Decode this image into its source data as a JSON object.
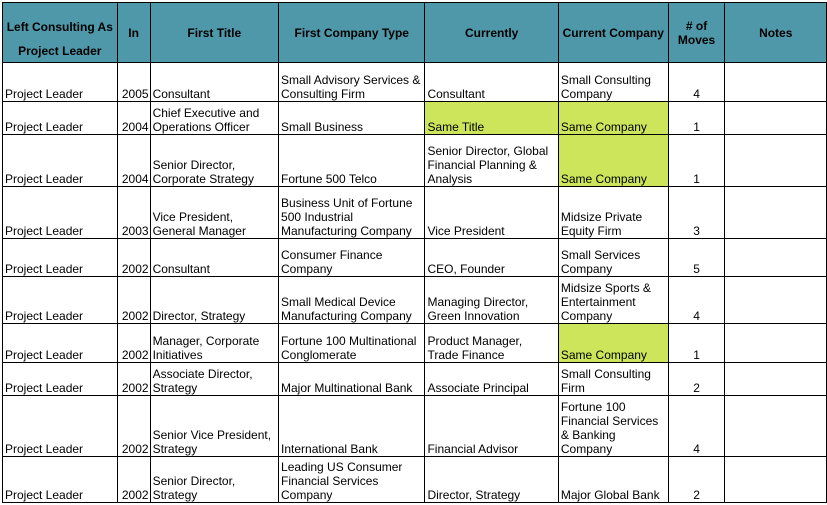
{
  "headers": {
    "left_consulting_as_line1": "Left Consulting As",
    "left_consulting_as_line2": "Project Leader",
    "in": "In",
    "first_title": "First Title",
    "first_company_type": "First Company Type",
    "currently": "Currently",
    "current_company": "Current Company",
    "moves": "# of Moves",
    "notes": "Notes"
  },
  "colors": {
    "header_bg": "#4f98a9",
    "highlight": "#cce55a"
  },
  "rows": [
    {
      "role": "Project Leader",
      "year": "2005",
      "first_title": "Consultant",
      "first_company_type": "Small Advisory Services & Consulting Firm",
      "currently": "Consultant",
      "current_company": "Small Consulting Company",
      "moves": "4",
      "notes": "",
      "hl_currently": false,
      "hl_company": false
    },
    {
      "role": "Project Leader",
      "year": "2004",
      "first_title": "Chief Executive and Operations Officer",
      "first_company_type": "Small Business",
      "currently": "Same Title",
      "current_company": "Same Company",
      "moves": "1",
      "notes": "",
      "hl_currently": true,
      "hl_company": true
    },
    {
      "role": "Project Leader",
      "year": "2004",
      "first_title": "Senior Director, Corporate Strategy",
      "first_company_type": "Fortune 500 Telco",
      "currently": "Senior Director, Global Financial Planning & Analysis",
      "current_company": "Same Company",
      "moves": "1",
      "notes": "",
      "hl_currently": false,
      "hl_company": true
    },
    {
      "role": "Project Leader",
      "year": "2003",
      "first_title": "Vice President, General Manager",
      "first_company_type": "Business Unit of Fortune 500 Industrial Manufacturing Company",
      "currently": "Vice President",
      "current_company": "Midsize Private Equity Firm",
      "moves": "3",
      "notes": "",
      "hl_currently": false,
      "hl_company": false
    },
    {
      "role": "Project Leader",
      "year": "2002",
      "first_title": "Consultant",
      "first_company_type": "Consumer Finance Company",
      "currently": "CEO, Founder",
      "current_company": "Small Services Company",
      "moves": "5",
      "notes": "",
      "hl_currently": false,
      "hl_company": false
    },
    {
      "role": "Project Leader",
      "year": "2002",
      "first_title": "Director, Strategy",
      "first_company_type": "Small Medical Device Manufacturing Company",
      "currently": "Managing Director, Green Innovation",
      "current_company": "Midsize Sports & Entertainment Company",
      "moves": "4",
      "notes": "",
      "hl_currently": false,
      "hl_company": false
    },
    {
      "role": "Project Leader",
      "year": "2002",
      "first_title": "Manager, Corporate Initiatives",
      "first_company_type": "Fortune 100 Multinational Conglomerate",
      "currently": "Product Manager, Trade Finance",
      "current_company": "Same Company",
      "moves": "1",
      "notes": "",
      "hl_currently": false,
      "hl_company": true
    },
    {
      "role": "Project Leader",
      "year": "2002",
      "first_title": "Associate Director, Strategy",
      "first_company_type": "Major Multinational Bank",
      "currently": "Associate Principal",
      "current_company": "Small Consulting Firm",
      "moves": "2",
      "notes": "",
      "hl_currently": false,
      "hl_company": false
    },
    {
      "role": "Project Leader",
      "year": "2002",
      "first_title": "Senior Vice President, Strategy",
      "first_company_type": "International Bank",
      "currently": "Financial Advisor",
      "current_company": "Fortune 100 Financial Services & Banking Company",
      "moves": "4",
      "notes": "",
      "hl_currently": false,
      "hl_company": false
    },
    {
      "role": "Project Leader",
      "year": "2002",
      "first_title": "Senior Director, Strategy",
      "first_company_type": "Leading US Consumer Financial Services Company",
      "currently": "Director, Strategy",
      "current_company": "Major Global Bank",
      "moves": "2",
      "notes": "",
      "hl_currently": false,
      "hl_company": false
    }
  ]
}
